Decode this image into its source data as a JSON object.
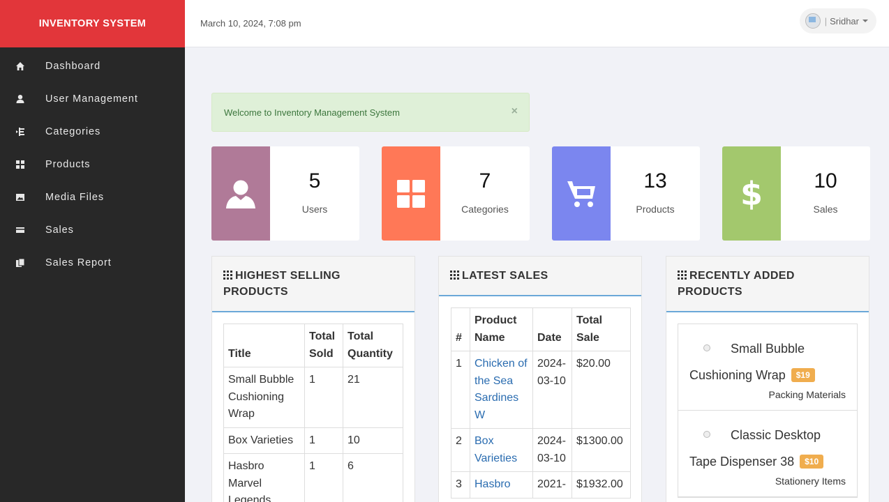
{
  "header": {
    "brand": "INVENTORY SYSTEM",
    "datetime": "March 10, 2024, 7:08 pm",
    "user_name": "Sridhar"
  },
  "sidebar": {
    "items": [
      {
        "label": "Dashboard",
        "icon": "home-icon"
      },
      {
        "label": "User Management",
        "icon": "user-icon"
      },
      {
        "label": "Categories",
        "icon": "indent-icon"
      },
      {
        "label": "Products",
        "icon": "th-large-icon"
      },
      {
        "label": "Media Files",
        "icon": "picture-icon"
      },
      {
        "label": "Sales",
        "icon": "credit-card-icon"
      },
      {
        "label": "Sales Report",
        "icon": "duplicate-icon"
      }
    ]
  },
  "alert": {
    "message": "Welcome to Inventory Management System",
    "close": "×"
  },
  "stats": [
    {
      "value": "5",
      "label": "Users",
      "color": "#b07a98",
      "icon": "user-icon"
    },
    {
      "value": "7",
      "label": "Categories",
      "color": "#ff7857",
      "icon": "th-large-icon"
    },
    {
      "value": "13",
      "label": "Products",
      "color": "#7b86ef",
      "icon": "shopping-cart-icon"
    },
    {
      "value": "10",
      "label": "Sales",
      "color": "#a3c86d",
      "icon": "usd-icon"
    }
  ],
  "highest_selling": {
    "title": "HIGHEST SELLING PRODUCTS",
    "columns": [
      "Title",
      "Total Sold",
      "Total Quantity"
    ],
    "rows": [
      [
        "Small Bubble Cushioning Wrap",
        "1",
        "21"
      ],
      [
        "Box Varieties",
        "1",
        "10"
      ],
      [
        "Hasbro Marvel Legends",
        "1",
        "6"
      ]
    ]
  },
  "latest_sales": {
    "title": "LATEST SALES",
    "columns": [
      "#",
      "Product Name",
      "Date",
      "Total Sale"
    ],
    "rows": [
      [
        "1",
        "Chicken of the Sea Sardines W",
        "2024-03-10",
        "$20.00"
      ],
      [
        "2",
        "Box Varieties",
        "2024-03-10",
        "$1300.00"
      ],
      [
        "3",
        "Hasbro",
        "2021-",
        "$1932.00"
      ]
    ]
  },
  "recent_products": {
    "title": "RECENTLY ADDED PRODUCTS",
    "items": [
      {
        "name_line1": "Small Bubble",
        "name_line2": "Cushioning Wrap",
        "price": "$19",
        "category": "Packing Materials"
      },
      {
        "name_line1": "Classic Desktop",
        "name_line2": "Tape Dispenser 38",
        "price": "$10",
        "category": "Stationery Items"
      }
    ]
  },
  "colors": {
    "brand_red": "#e2363a",
    "sidebar_bg": "#282828",
    "link_blue": "#2a6cb0",
    "badge_orange": "#f0ad4e"
  }
}
